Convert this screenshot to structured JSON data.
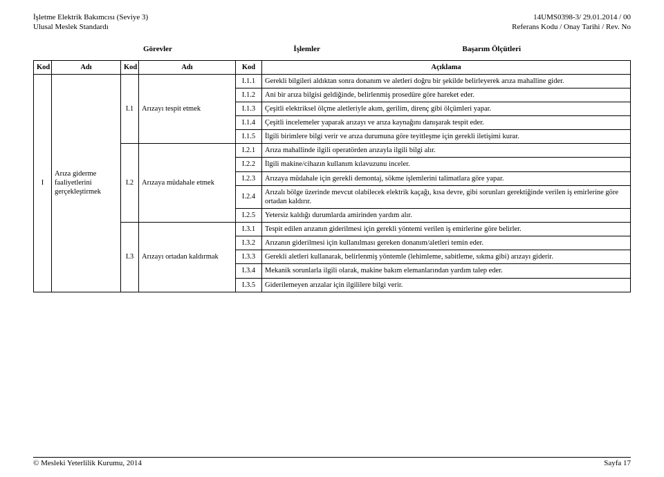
{
  "header": {
    "left_line1": "İşletme Elektrik Bakımcısı (Seviye 3)",
    "left_line2": "Ulusal Meslek Standardı",
    "right_line1": "14UMS0398-3/ 29.01.2014 / 00",
    "right_line2": "Referans Kodu / Onay Tarihi / Rev. No"
  },
  "section_labels": {
    "gorevler": "Görevler",
    "islemler": "İşlemler",
    "basarim": "Başarım Ölçütleri"
  },
  "table_headers": {
    "kod": "Kod",
    "adi": "Adı",
    "aciklama": "Açıklama"
  },
  "gorev": {
    "kod": "I",
    "adi": "Arıza giderme faaliyetlerini gerçekleştirmek"
  },
  "islemler": [
    {
      "kod": "I.1",
      "adi": "Arızayı tespit etmek"
    },
    {
      "kod": "I.2",
      "adi": "Arızaya müdahale etmek"
    },
    {
      "kod": "I.3",
      "adi": "Arızayı ortadan kaldırmak"
    }
  ],
  "olcutler": {
    "i1": [
      {
        "kod": "I.1.1",
        "text": "Gerekli bilgileri aldıktan sonra donanım ve aletleri doğru bir şekilde belirleyerek arıza mahalline gider."
      },
      {
        "kod": "I.1.2",
        "text": "Ani bir arıza bilgisi geldiğinde, belirlenmiş prosedüre göre hareket eder."
      },
      {
        "kod": "I.1.3",
        "text": "Çeşitli elektriksel ölçme aletleriyle akım, gerilim, direnç gibi ölçümleri yapar."
      },
      {
        "kod": "I.1.4",
        "text": "Çeşitli incelemeler yaparak arızayı ve arıza kaynağını danışarak tespit eder."
      },
      {
        "kod": "I.1.5",
        "text": "İlgili birimlere bilgi verir ve arıza durumuna göre teyitleşme için gerekli iletişimi kurar."
      }
    ],
    "i2": [
      {
        "kod": "I.2.1",
        "text": "Arıza mahallinde ilgili operatörden arızayla ilgili bilgi alır."
      },
      {
        "kod": "I.2.2",
        "text": "İlgili makine/cihazın kullanım kılavuzunu inceler."
      },
      {
        "kod": "I.2.3",
        "text": "Arızaya müdahale için gerekli demontaj, sökme işlemlerini talimatlara göre yapar."
      },
      {
        "kod": "I.2.4",
        "text": "Arızalı bölge üzerinde mevcut olabilecek elektrik kaçağı, kısa devre, gibi sorunları gerektiğinde verilen iş emirlerine göre ortadan kaldırır."
      },
      {
        "kod": "I.2.5",
        "text": "Yetersiz kaldığı durumlarda amirinden yardım alır."
      }
    ],
    "i3": [
      {
        "kod": "I.3.1",
        "text": "Tespit edilen arızanın giderilmesi için gerekli yöntemi verilen iş emirlerine göre belirler."
      },
      {
        "kod": "I.3.2",
        "text": "Arızanın giderilmesi için kullanılması gereken donanım/aletleri temin eder."
      },
      {
        "kod": "I.3.3",
        "text": "Gerekli aletleri kullanarak, belirlenmiş yöntemle (lehimleme, sabitleme, sıkma gibi) arızayı giderir."
      },
      {
        "kod": "I.3.4",
        "text": "Mekanik sorunlarla ilgili olarak, makine bakım elemanlarından yardım talep eder."
      },
      {
        "kod": "I.3.5",
        "text": "Giderilemeyen arızalar için ilgililere bilgi verir."
      }
    ]
  },
  "footer": {
    "left": "© Mesleki Yeterlilik Kurumu, 2014",
    "right": "Sayfa 17"
  },
  "colors": {
    "text": "#000000",
    "background": "#ffffff",
    "border": "#000000"
  }
}
